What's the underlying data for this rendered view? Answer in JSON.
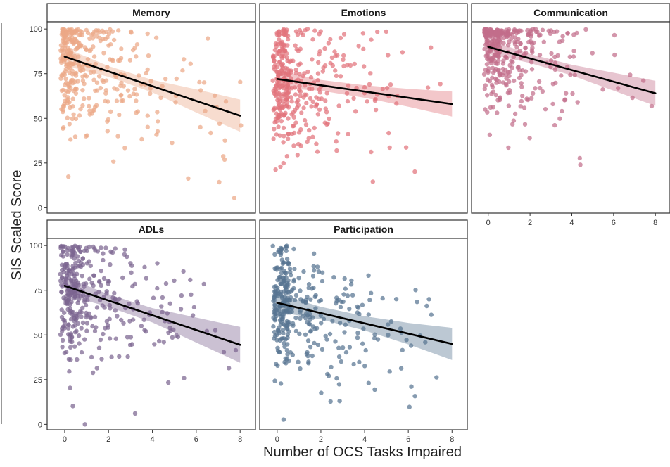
{
  "figure": {
    "xlabel": "Number of OCS Tasks Impaired",
    "ylabel": "SIS Scaled Score"
  },
  "chart_data": {
    "type": "scatter",
    "xlim": [
      -0.8,
      8.7
    ],
    "ylim": [
      -3,
      104
    ],
    "x_ticks": [
      0,
      2,
      4,
      6,
      8
    ],
    "y_ticks": [
      0,
      25,
      50,
      75,
      100
    ],
    "x_tick_labels": [
      "0",
      "2",
      "4",
      "6",
      "8"
    ],
    "y_tick_labels": [
      "0",
      "25",
      "50",
      "75",
      "100"
    ],
    "grid": false,
    "panels": [
      {
        "name": "Memory",
        "color": "#eba886",
        "line": [
          [
            0,
            84.5
          ],
          [
            8,
            51.5
          ]
        ],
        "band_width": [
          5,
          3,
          3.5,
          6.5,
          9
        ]
      },
      {
        "name": "Emotions",
        "color": "#e2737b",
        "line": [
          [
            0,
            72
          ],
          [
            8,
            58
          ]
        ],
        "band_width": [
          5,
          3,
          3.5,
          5,
          7
        ]
      },
      {
        "name": "Communication",
        "color": "#c26e8a",
        "line": [
          [
            0,
            90
          ],
          [
            8,
            64
          ]
        ],
        "band_width": [
          4,
          2.5,
          3,
          5,
          7
        ]
      },
      {
        "name": "ADLs",
        "color": "#7c6590",
        "line": [
          [
            0,
            77.5
          ],
          [
            8,
            44.5
          ]
        ],
        "band_width": [
          5,
          3.5,
          4,
          7,
          10
        ]
      },
      {
        "name": "Participation",
        "color": "#577592",
        "line": [
          [
            0,
            68
          ],
          [
            8,
            45
          ]
        ],
        "band_width": [
          5,
          3.5,
          4,
          6,
          9
        ]
      }
    ]
  }
}
